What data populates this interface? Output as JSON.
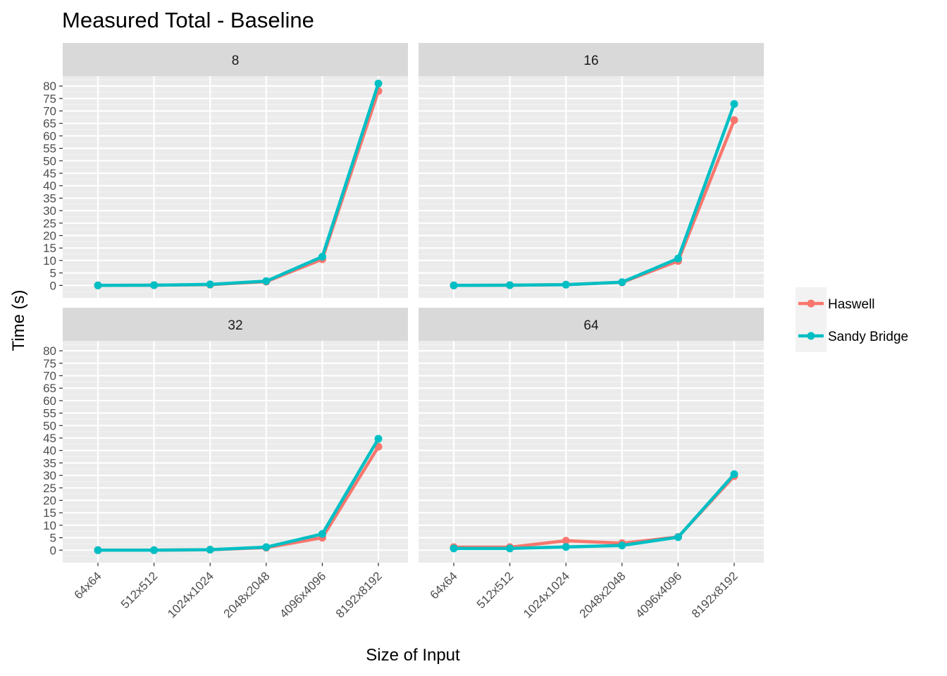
{
  "chart_data": {
    "type": "line",
    "title": "Measured Total - Baseline",
    "xlabel": "Size of Input",
    "ylabel": "Time (s)",
    "categories": [
      "64x64",
      "512x512",
      "1024x1024",
      "2048x2048",
      "4096x4096",
      "8192x8192"
    ],
    "ylim": [
      -5,
      84
    ],
    "yticks": [
      0,
      5,
      10,
      15,
      20,
      25,
      30,
      35,
      40,
      45,
      50,
      55,
      60,
      65,
      70,
      75,
      80
    ],
    "grid": true,
    "legend_position": "right",
    "colors": {
      "Haswell": "#F8766D",
      "Sandy Bridge": "#00BFC4"
    },
    "panels": [
      {
        "label": "8",
        "series": [
          {
            "name": "Haswell",
            "values": [
              0.0,
              0.1,
              0.3,
              1.5,
              10.5,
              78.0
            ]
          },
          {
            "name": "Sandy Bridge",
            "values": [
              0.0,
              0.1,
              0.4,
              1.7,
              11.5,
              81.0
            ]
          }
        ]
      },
      {
        "label": "16",
        "series": [
          {
            "name": "Haswell",
            "values": [
              0.0,
              0.1,
              0.3,
              1.2,
              9.8,
              66.3
            ]
          },
          {
            "name": "Sandy Bridge",
            "values": [
              0.0,
              0.1,
              0.3,
              1.3,
              10.8,
              72.8
            ]
          }
        ]
      },
      {
        "label": "32",
        "series": [
          {
            "name": "Haswell",
            "values": [
              0.0,
              0.0,
              0.2,
              1.0,
              5.0,
              41.5
            ]
          },
          {
            "name": "Sandy Bridge",
            "values": [
              0.0,
              0.0,
              0.2,
              1.2,
              6.5,
              44.7
            ]
          }
        ]
      },
      {
        "label": "64",
        "series": [
          {
            "name": "Haswell",
            "values": [
              1.2,
              1.2,
              3.8,
              2.8,
              5.3,
              29.7
            ]
          },
          {
            "name": "Sandy Bridge",
            "values": [
              0.7,
              0.7,
              1.3,
              1.9,
              5.2,
              30.5
            ]
          }
        ]
      }
    ],
    "legend": [
      {
        "name": "Haswell"
      },
      {
        "name": "Sandy Bridge"
      }
    ]
  }
}
